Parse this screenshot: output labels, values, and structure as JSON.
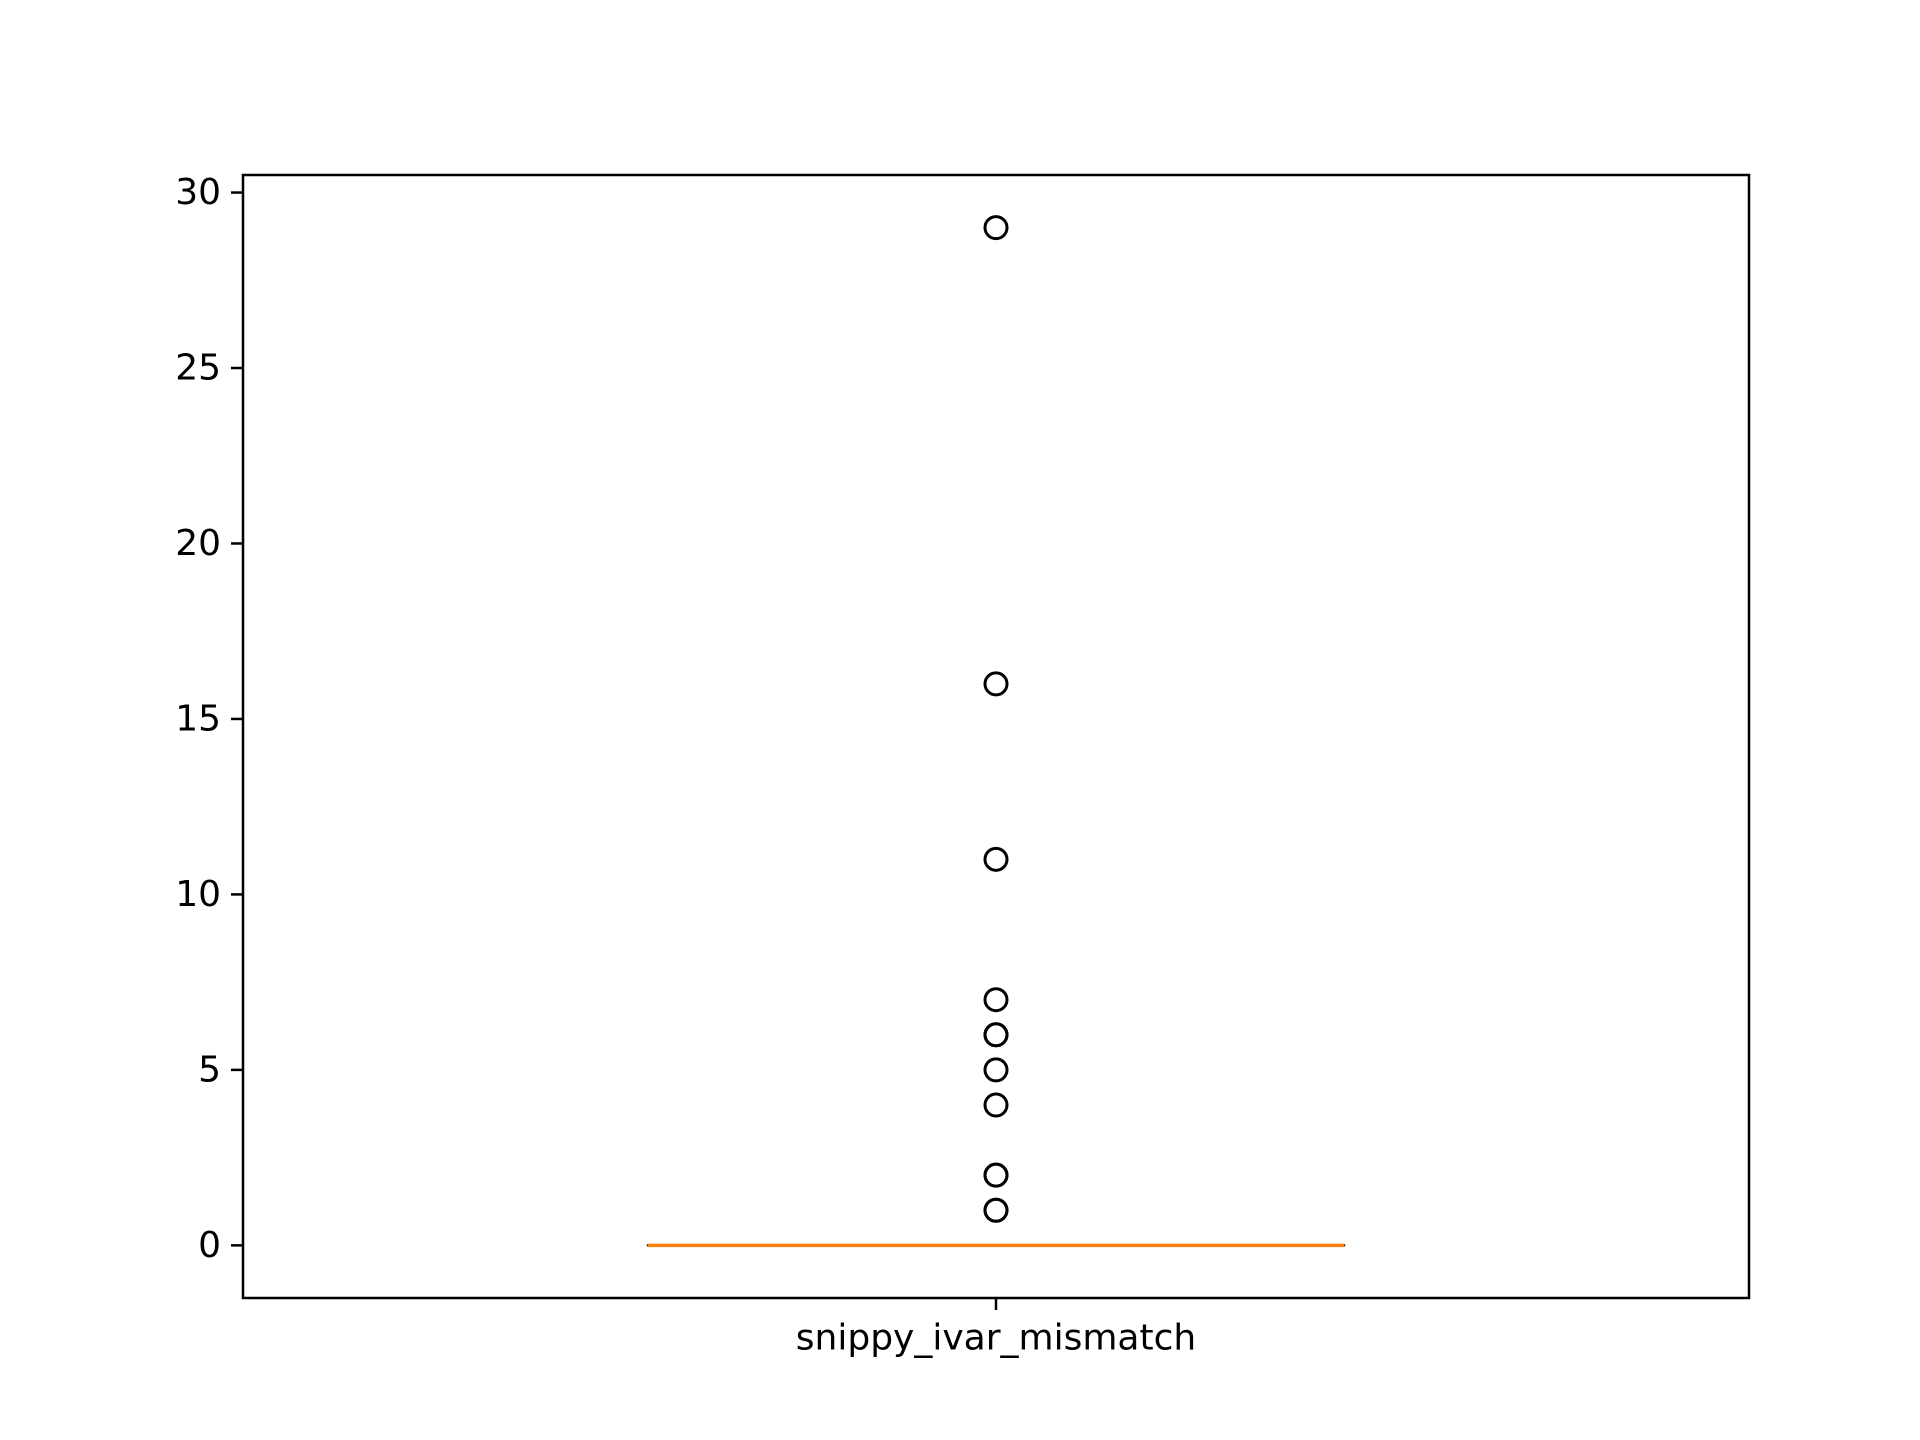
{
  "chart_data": {
    "type": "box",
    "title": "",
    "xlabel": "",
    "ylabel": "",
    "categories": [
      "snippy_ivar_mismatch"
    ],
    "ylim": [
      -1.5,
      30.5
    ],
    "yticks": [
      0,
      5,
      10,
      15,
      20,
      25,
      30
    ],
    "ytick_labels": [
      "0",
      "5",
      "10",
      "15",
      "20",
      "25",
      "30"
    ],
    "grid": false,
    "series": [
      {
        "q1": 0,
        "median": 0,
        "q3": 0,
        "whisker_low": 0,
        "whisker_high": 0,
        "outliers": [
          29,
          16,
          11,
          7,
          6,
          6,
          5,
          4,
          2,
          2,
          1,
          1
        ]
      }
    ],
    "colors": {
      "median": "#ff7f0e",
      "box": "#000000",
      "outlier_edge": "#000000"
    }
  }
}
